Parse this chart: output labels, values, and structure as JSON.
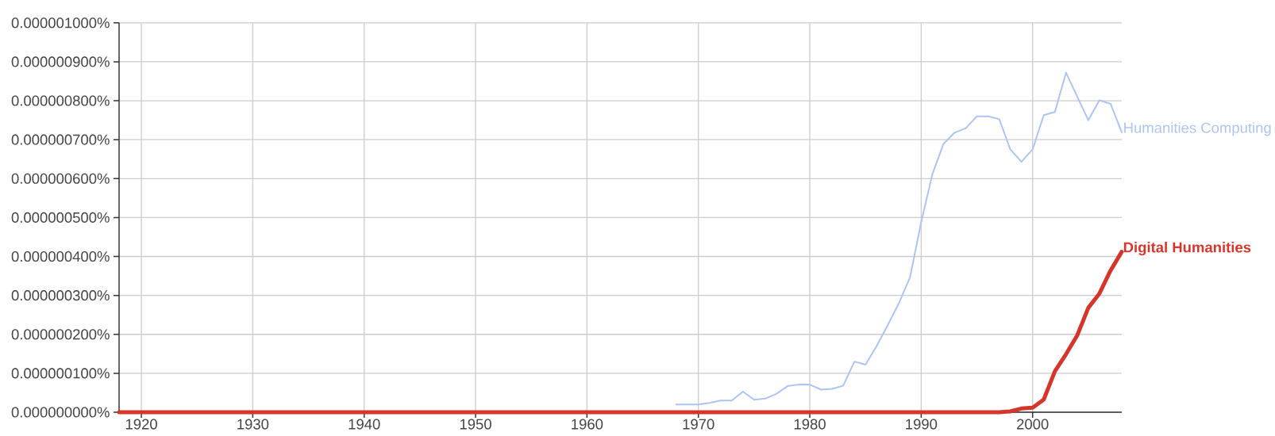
{
  "chart_data": {
    "type": "line",
    "xlim": [
      1918,
      2008
    ],
    "xticks": [
      1920,
      1930,
      1940,
      1950,
      1960,
      1970,
      1980,
      1990,
      2000
    ],
    "ylim": [
      0,
      1e-06
    ],
    "yticks": [
      {
        "value": 0,
        "label": "0.000000000%"
      },
      {
        "value": 1e-07,
        "label": "0.000000100%"
      },
      {
        "value": 2e-07,
        "label": "0.000000200%"
      },
      {
        "value": 3e-07,
        "label": "0.000000300%"
      },
      {
        "value": 4e-07,
        "label": "0.000000400%"
      },
      {
        "value": 5e-07,
        "label": "0.000000500%"
      },
      {
        "value": 6e-07,
        "label": "0.000000600%"
      },
      {
        "value": 7e-07,
        "label": "0.000000700%"
      },
      {
        "value": 8e-07,
        "label": "0.000000800%"
      },
      {
        "value": 9e-07,
        "label": "0.000000900%"
      },
      {
        "value": 1e-06,
        "label": "0.000001000%"
      }
    ],
    "grid": true,
    "line_style": "solid",
    "series": [
      {
        "name": "Humanities Computing",
        "color": "#adc4f2",
        "x": [
          1968,
          1969,
          1970,
          1971,
          1972,
          1973,
          1974,
          1975,
          1976,
          1977,
          1978,
          1979,
          1980,
          1981,
          1982,
          1983,
          1984,
          1985,
          1986,
          1987,
          1988,
          1989,
          1990,
          1991,
          1992,
          1993,
          1994,
          1995,
          1996,
          1997,
          1998,
          1999,
          2000,
          2001,
          2002,
          2003,
          2004,
          2005,
          2006,
          2007,
          2008
        ],
        "values": [
          2e-08,
          2e-08,
          2e-08,
          2.4e-08,
          3e-08,
          3e-08,
          5.3e-08,
          3.2e-08,
          3.5e-08,
          4.7e-08,
          6.7e-08,
          7.1e-08,
          7.1e-08,
          5.8e-08,
          6e-08,
          6.8e-08,
          1.3e-07,
          1.22e-07,
          1.7e-07,
          2.24e-07,
          2.8e-07,
          3.47e-07,
          4.88e-07,
          6.11e-07,
          6.89e-07,
          7.18e-07,
          7.29e-07,
          7.6e-07,
          7.6e-07,
          7.53e-07,
          6.75e-07,
          6.43e-07,
          6.75e-07,
          7.63e-07,
          7.71e-07,
          8.72e-07,
          8.11e-07,
          7.5e-07,
          8.01e-07,
          7.92e-07,
          7.19e-07
        ]
      },
      {
        "name": "Digital Humanities",
        "color": "#d5362b",
        "x": [
          1918,
          1997,
          1998,
          1999,
          2000,
          2001,
          2002,
          2003,
          2004,
          2005,
          2006,
          2007,
          2008
        ],
        "values": [
          0,
          0,
          2e-09,
          9.5e-09,
          1.15e-08,
          3.25e-08,
          1.05e-07,
          1.49e-07,
          1.97e-07,
          2.68e-07,
          3.05e-07,
          3.64e-07,
          4.12e-07
        ]
      }
    ]
  }
}
